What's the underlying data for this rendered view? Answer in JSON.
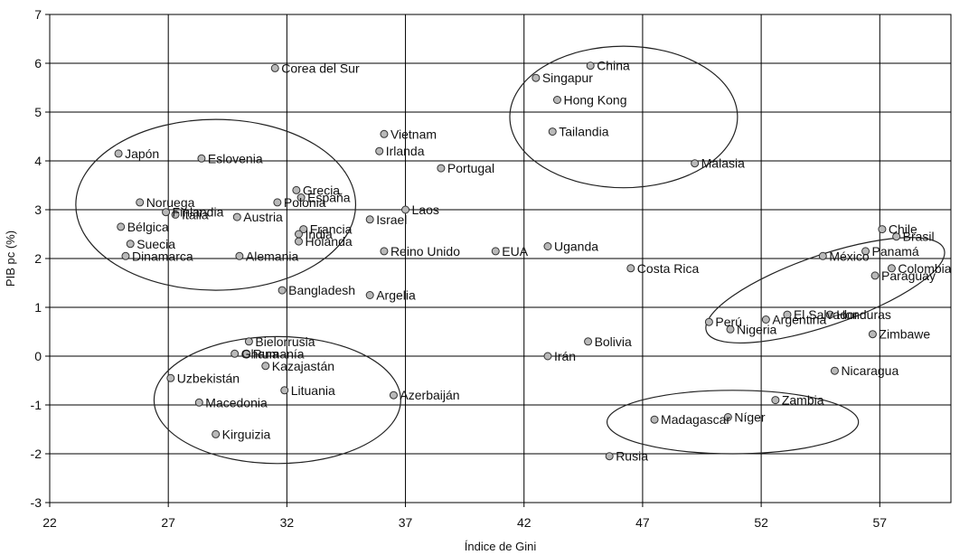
{
  "chart_data": {
    "type": "scatter",
    "xlabel": "Índice de Gini",
    "ylabel": "PIB pc (%)",
    "xlim": [
      22,
      60
    ],
    "ylim": [
      -3,
      7
    ],
    "xticks": [
      22,
      27,
      32,
      37,
      42,
      47,
      52,
      57
    ],
    "yticks": [
      -3,
      -2,
      -1,
      0,
      1,
      2,
      3,
      4,
      5,
      6,
      7
    ],
    "grid": true,
    "legend": "none",
    "points": [
      {
        "label": "Corea del Sur",
        "x": 31.5,
        "y": 5.9
      },
      {
        "label": "China",
        "x": 44.8,
        "y": 5.95
      },
      {
        "label": "Singapur",
        "x": 42.5,
        "y": 5.7
      },
      {
        "label": "Hong Kong",
        "x": 43.4,
        "y": 5.25
      },
      {
        "label": "Tailandia",
        "x": 43.2,
        "y": 4.6
      },
      {
        "label": "Malasia",
        "x": 49.2,
        "y": 3.95
      },
      {
        "label": "Vietnam",
        "x": 36.1,
        "y": 4.55
      },
      {
        "label": "Irlanda",
        "x": 35.9,
        "y": 4.2
      },
      {
        "label": "Portugal",
        "x": 38.5,
        "y": 3.85
      },
      {
        "label": "Japón",
        "x": 24.9,
        "y": 4.15
      },
      {
        "label": "Eslovenia",
        "x": 28.4,
        "y": 4.05
      },
      {
        "label": "Noruega",
        "x": 25.8,
        "y": 3.15
      },
      {
        "label": "Finlandia",
        "x": 26.9,
        "y": 2.95
      },
      {
        "label": "Italia",
        "x": 27.3,
        "y": 2.9
      },
      {
        "label": "Bélgica",
        "x": 25.0,
        "y": 2.65
      },
      {
        "label": "Suecia",
        "x": 25.4,
        "y": 2.3
      },
      {
        "label": "Dinamarca",
        "x": 25.2,
        "y": 2.05
      },
      {
        "label": "Austria",
        "x": 29.9,
        "y": 2.85
      },
      {
        "label": "Alemania",
        "x": 30.0,
        "y": 2.05
      },
      {
        "label": "Grecia",
        "x": 32.4,
        "y": 3.4
      },
      {
        "label": "España",
        "x": 32.6,
        "y": 3.25
      },
      {
        "label": "Polonia",
        "x": 31.6,
        "y": 3.15
      },
      {
        "label": "Francia",
        "x": 32.7,
        "y": 2.6
      },
      {
        "label": "India",
        "x": 32.5,
        "y": 2.5
      },
      {
        "label": "Holanda",
        "x": 32.5,
        "y": 2.35
      },
      {
        "label": "Israel",
        "x": 35.5,
        "y": 2.8
      },
      {
        "label": "Laos",
        "x": 37.0,
        "y": 3.0
      },
      {
        "label": "Reino Unido",
        "x": 36.1,
        "y": 2.15
      },
      {
        "label": "EUA",
        "x": 40.8,
        "y": 2.15
      },
      {
        "label": "Uganda",
        "x": 43.0,
        "y": 2.25
      },
      {
        "label": "Costa Rica",
        "x": 46.5,
        "y": 1.8
      },
      {
        "label": "Bangladesh",
        "x": 31.8,
        "y": 1.35
      },
      {
        "label": "Argelia",
        "x": 35.5,
        "y": 1.25
      },
      {
        "label": "Chile",
        "x": 57.1,
        "y": 2.6
      },
      {
        "label": "Panamá",
        "x": 56.4,
        "y": 2.15
      },
      {
        "label": "Brasil",
        "x": 57.7,
        "y": 2.45
      },
      {
        "label": "México",
        "x": 54.6,
        "y": 2.05
      },
      {
        "label": "Colombia",
        "x": 57.5,
        "y": 1.8
      },
      {
        "label": "Paraguay",
        "x": 56.8,
        "y": 1.65
      },
      {
        "label": "El Salvador",
        "x": 53.1,
        "y": 0.85
      },
      {
        "label": "Honduras",
        "x": 54.9,
        "y": 0.85
      },
      {
        "label": "Perú",
        "x": 49.8,
        "y": 0.7
      },
      {
        "label": "Argentina",
        "x": 52.2,
        "y": 0.75
      },
      {
        "label": "Nigeria",
        "x": 50.7,
        "y": 0.55
      },
      {
        "label": "Zimbawe",
        "x": 56.7,
        "y": 0.45
      },
      {
        "label": "Nicaragua",
        "x": 55.1,
        "y": -0.3
      },
      {
        "label": "Bolivia",
        "x": 44.7,
        "y": 0.3
      },
      {
        "label": "Irán",
        "x": 43.0,
        "y": 0.0
      },
      {
        "label": "Bielorrusia",
        "x": 30.4,
        "y": 0.3
      },
      {
        "label": "Ghana",
        "x": 29.8,
        "y": 0.05
      },
      {
        "label": "Rumanía",
        "x": 30.3,
        "y": 0.05
      },
      {
        "label": "Kazajastán",
        "x": 31.1,
        "y": -0.2
      },
      {
        "label": "Uzbekistán",
        "x": 27.1,
        "y": -0.45
      },
      {
        "label": "Lituania",
        "x": 31.9,
        "y": -0.7
      },
      {
        "label": "Macedonia",
        "x": 28.3,
        "y": -0.95
      },
      {
        "label": "Azerbaiján",
        "x": 36.5,
        "y": -0.8
      },
      {
        "label": "Kirguizia",
        "x": 29.0,
        "y": -1.6
      },
      {
        "label": "Zambia",
        "x": 52.6,
        "y": -0.9
      },
      {
        "label": "Níger",
        "x": 50.6,
        "y": -1.25
      },
      {
        "label": "Madagascar",
        "x": 47.5,
        "y": -1.3
      },
      {
        "label": "Rusia",
        "x": 45.6,
        "y": -2.05
      }
    ],
    "clusters": [
      {
        "cx": 29.0,
        "cy": 3.1,
        "rx": 5.9,
        "ry": 1.75,
        "angle": 0
      },
      {
        "cx": 46.2,
        "cy": 4.9,
        "rx": 4.8,
        "ry": 1.45,
        "angle": 0
      },
      {
        "cx": 54.7,
        "cy": 1.35,
        "rx": 5.3,
        "ry": 0.72,
        "angle": -19
      },
      {
        "cx": 31.6,
        "cy": -0.9,
        "rx": 5.2,
        "ry": 1.3,
        "angle": 0
      },
      {
        "cx": 50.8,
        "cy": -1.35,
        "rx": 5.3,
        "ry": 0.65,
        "angle": 0
      }
    ]
  }
}
